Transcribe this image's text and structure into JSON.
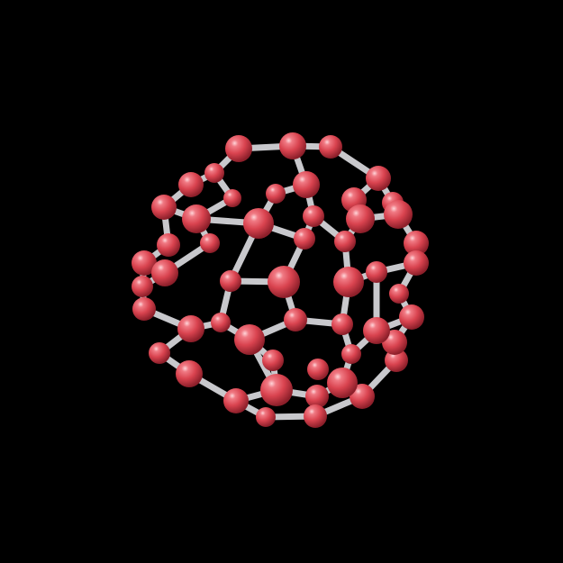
{
  "image": {
    "subject": "fullerene-molecule",
    "background_color": "#000000",
    "atom_color": "#d9434f",
    "bond_color": "#c8c8cc"
  }
}
